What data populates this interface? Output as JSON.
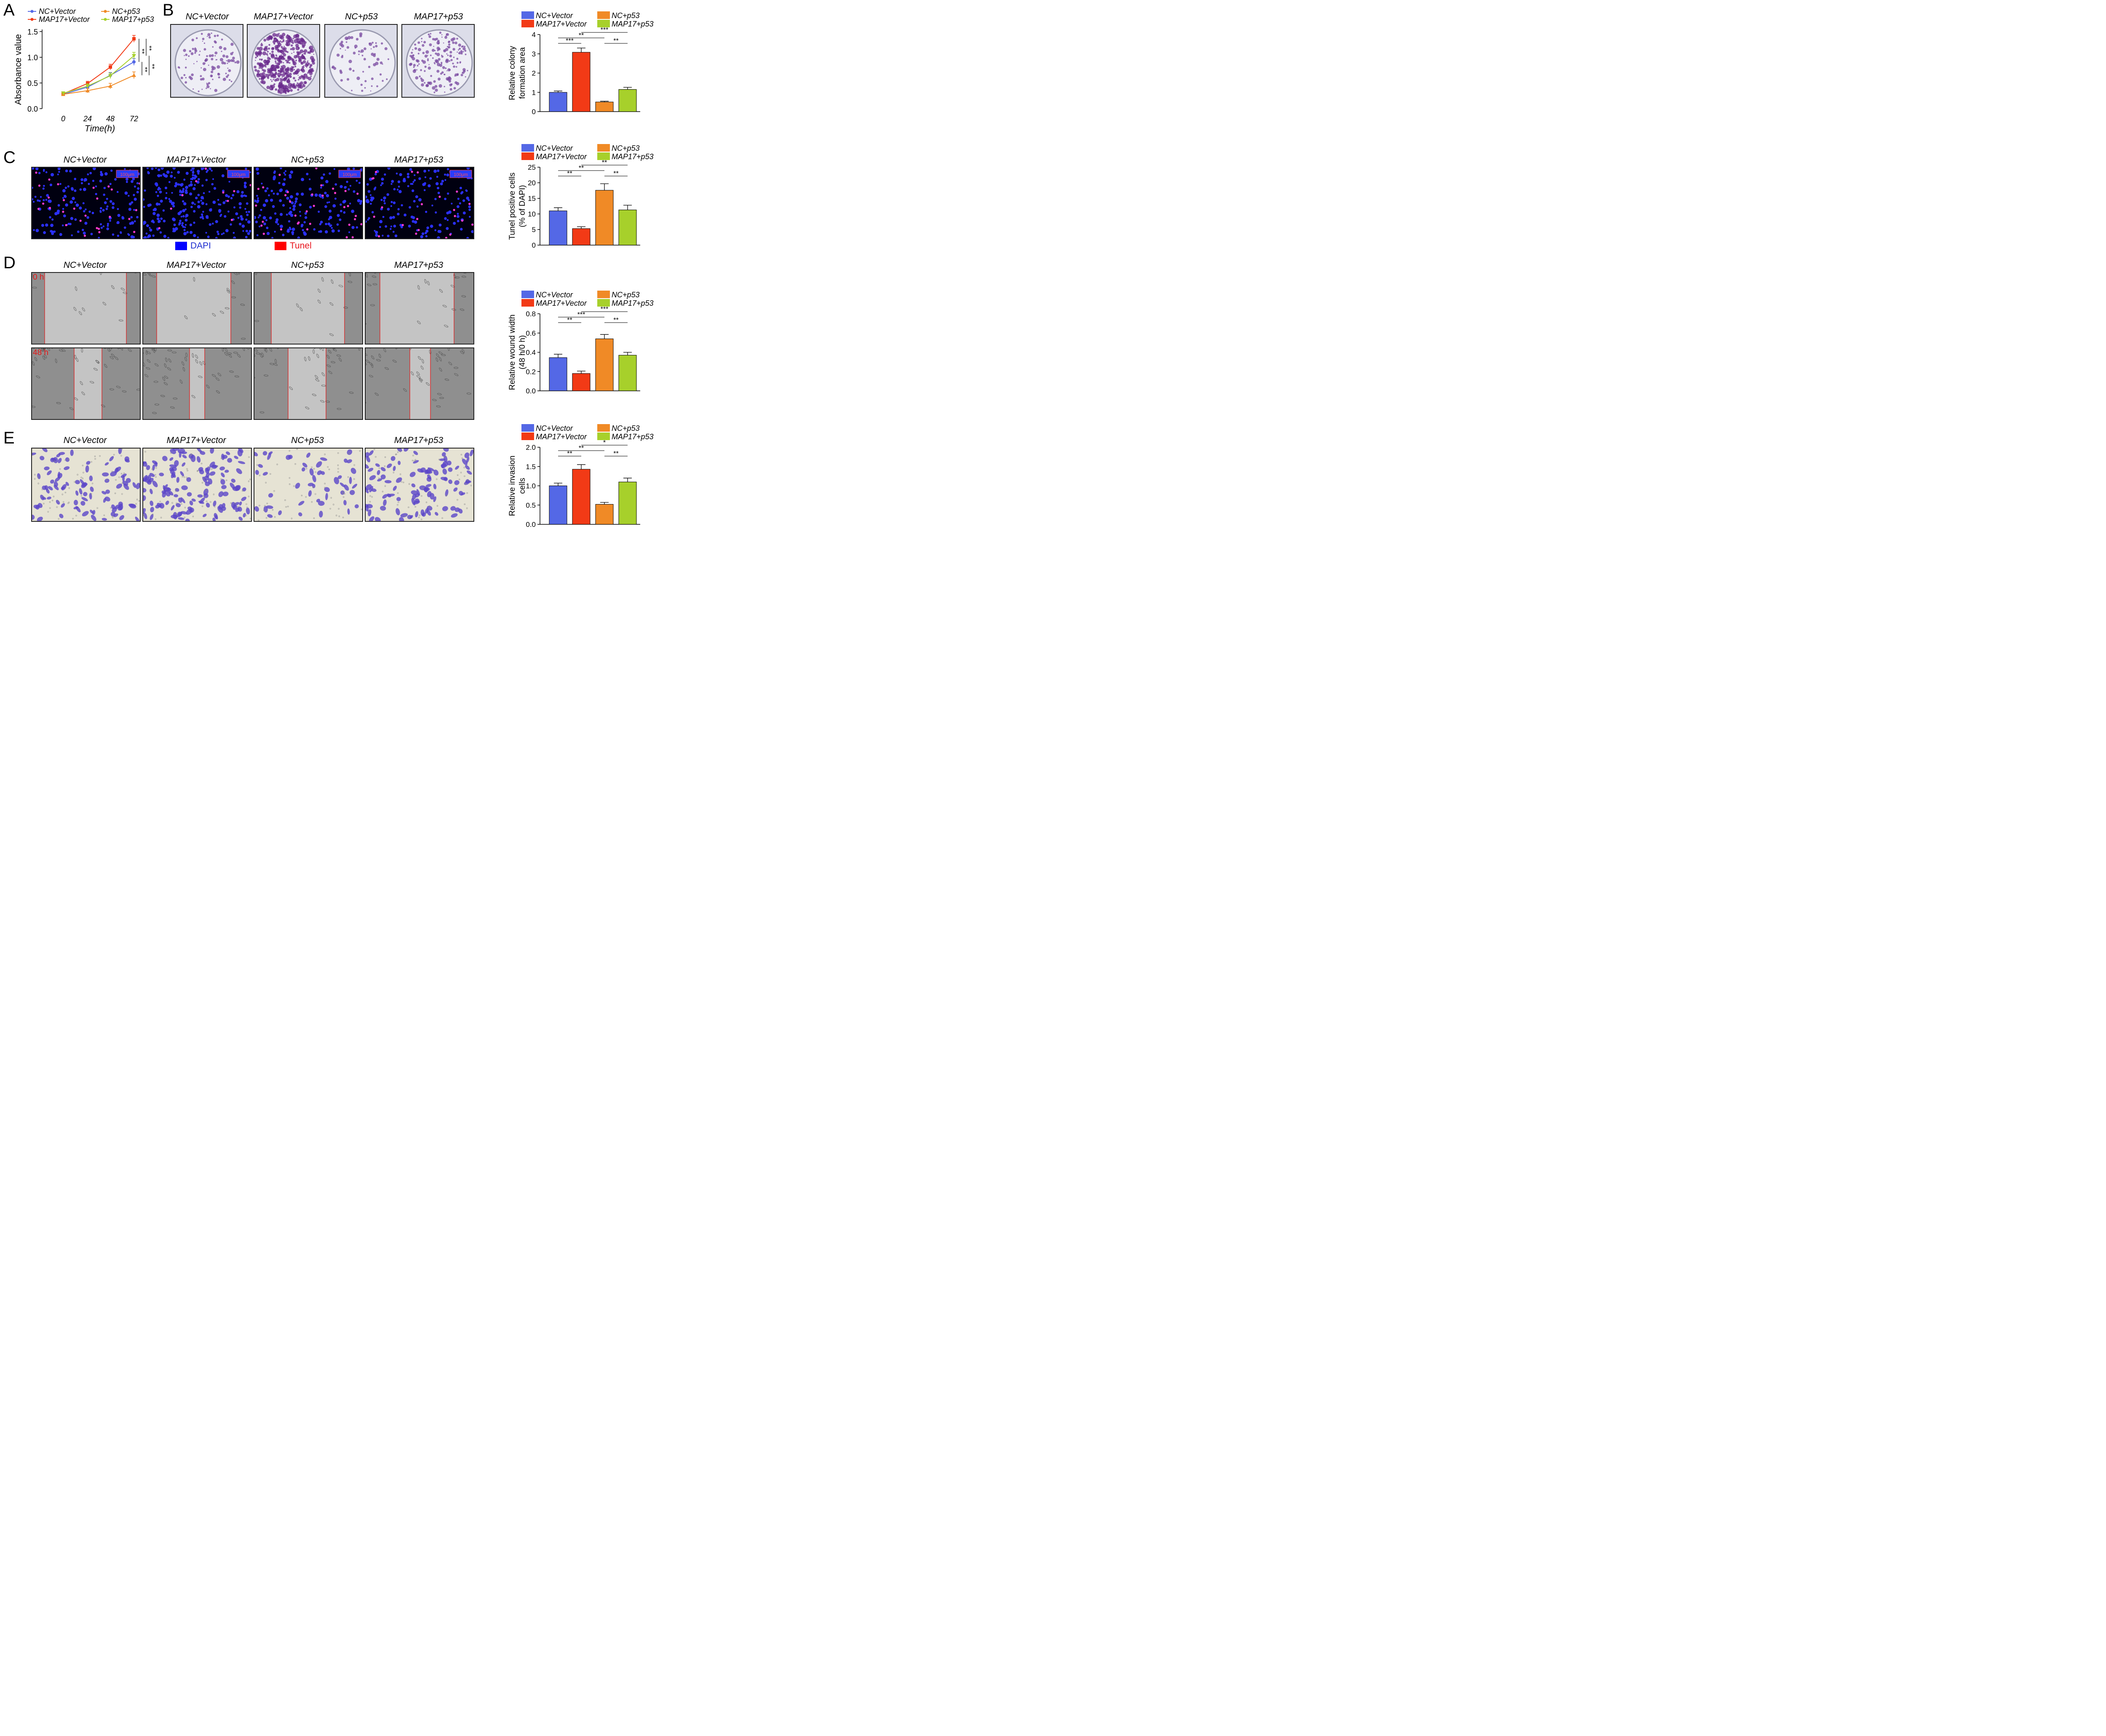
{
  "groups": [
    "NC+Vector",
    "MAP17+Vector",
    "NC+p53",
    "MAP17+p53"
  ],
  "colors": {
    "nc_vector": "#5468e6",
    "map17_vector": "#f23a16",
    "nc_p53": "#f08a26",
    "map17_p53": "#a7d02b"
  },
  "panels": {
    "A": "A",
    "B": "B",
    "C": "C",
    "D": "D",
    "E": "E"
  },
  "panel_C_legend": {
    "dapi": "DAPI",
    "tunel": "Tunel"
  },
  "scale_bar": "100μm",
  "wound_times": {
    "t0": "0 h",
    "t48": "48 h"
  },
  "chart_data": [
    {
      "id": "A",
      "type": "line",
      "xlabel": "Time(h)",
      "ylabel": "Absorbance value",
      "x": [
        0,
        24,
        48,
        72
      ],
      "xticks": [
        "0",
        "24",
        "48",
        "72"
      ],
      "ylim": [
        0,
        1.5
      ],
      "yticks": [
        "0.0",
        "0.5",
        "1.0",
        "1.5"
      ],
      "series": [
        {
          "name": "NC+Vector",
          "values": [
            0.28,
            0.42,
            0.65,
            0.91
          ]
        },
        {
          "name": "MAP17+Vector",
          "values": [
            0.29,
            0.49,
            0.81,
            1.36
          ]
        },
        {
          "name": "NC+p53",
          "values": [
            0.28,
            0.35,
            0.44,
            0.65
          ]
        },
        {
          "name": "MAP17+p53",
          "values": [
            0.3,
            0.44,
            0.64,
            1.03
          ]
        }
      ],
      "significance": [
        "**",
        "**",
        "**",
        "**"
      ]
    },
    {
      "id": "B",
      "type": "bar",
      "ylabel_lines": [
        "Relative colony",
        "formation area"
      ],
      "categories": [
        "NC+Vector",
        "MAP17+Vector",
        "NC+p53",
        "MAP17+p53"
      ],
      "values": [
        1.0,
        3.08,
        0.5,
        1.15
      ],
      "errors": [
        0.07,
        0.22,
        0.04,
        0.11
      ],
      "ylim": [
        0,
        4
      ],
      "yticks": [
        "0",
        "1",
        "2",
        "3",
        "4"
      ],
      "significance": [
        {
          "from": 0,
          "to": 1,
          "label": "***",
          "level": 1
        },
        {
          "from": 0,
          "to": 2,
          "label": "**",
          "level": 2
        },
        {
          "from": 1,
          "to": 3,
          "label": "***",
          "level": 3
        },
        {
          "from": 2,
          "to": 3,
          "label": "**",
          "level": 1
        }
      ]
    },
    {
      "id": "C",
      "type": "bar",
      "ylabel_lines": [
        "Tunel positive cells",
        "(% of DAPI)"
      ],
      "categories": [
        "NC+Vector",
        "MAP17+Vector",
        "NC+p53",
        "MAP17+p53"
      ],
      "values": [
        11.0,
        5.3,
        17.6,
        11.3
      ],
      "errors": [
        1.0,
        0.6,
        2.1,
        1.5
      ],
      "ylim": [
        0,
        25
      ],
      "yticks": [
        "0",
        "5",
        "10",
        "15",
        "20",
        "25"
      ],
      "significance": [
        {
          "from": 0,
          "to": 1,
          "label": "**",
          "level": 1
        },
        {
          "from": 0,
          "to": 2,
          "label": "**",
          "level": 2
        },
        {
          "from": 1,
          "to": 3,
          "label": "**",
          "level": 3
        },
        {
          "from": 2,
          "to": 3,
          "label": "**",
          "level": 1
        }
      ]
    },
    {
      "id": "D",
      "type": "bar",
      "ylabel_lines": [
        "Relative wound width",
        "(48 h/0 h)"
      ],
      "categories": [
        "NC+Vector",
        "MAP17+Vector",
        "NC+p53",
        "MAP17+p53"
      ],
      "values": [
        0.345,
        0.18,
        0.54,
        0.37
      ],
      "errors": [
        0.035,
        0.025,
        0.045,
        0.03
      ],
      "ylim": [
        0,
        0.8
      ],
      "yticks": [
        "0.0",
        "0.2",
        "0.4",
        "0.6",
        "0.8"
      ],
      "significance": [
        {
          "from": 0,
          "to": 1,
          "label": "**",
          "level": 1
        },
        {
          "from": 0,
          "to": 2,
          "label": "***",
          "level": 2
        },
        {
          "from": 1,
          "to": 3,
          "label": "***",
          "level": 3
        },
        {
          "from": 2,
          "to": 3,
          "label": "**",
          "level": 1
        }
      ]
    },
    {
      "id": "E",
      "type": "bar",
      "ylabel_lines": [
        "Relative invasion",
        "cells"
      ],
      "categories": [
        "NC+Vector",
        "MAP17+Vector",
        "NC+p53",
        "MAP17+p53"
      ],
      "values": [
        1.0,
        1.43,
        0.52,
        1.1
      ],
      "errors": [
        0.07,
        0.12,
        0.05,
        0.1
      ],
      "ylim": [
        0,
        2.0
      ],
      "yticks": [
        "0.0",
        "0.5",
        "1.0",
        "1.5",
        "2.0"
      ],
      "significance": [
        {
          "from": 0,
          "to": 1,
          "label": "**",
          "level": 1
        },
        {
          "from": 0,
          "to": 2,
          "label": "**",
          "level": 2
        },
        {
          "from": 1,
          "to": 3,
          "label": "*",
          "level": 3
        },
        {
          "from": 2,
          "to": 3,
          "label": "**",
          "level": 1
        }
      ]
    }
  ]
}
